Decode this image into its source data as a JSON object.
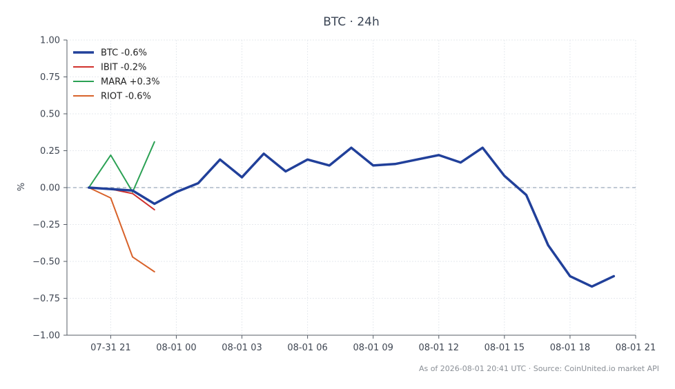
{
  "chart_data": {
    "type": "line",
    "title": "BTC · 24h",
    "xlabel": "",
    "ylabel": "%",
    "ylim": [
      -1.0,
      1.0
    ],
    "xlim": [
      -1.0,
      25.0
    ],
    "x_ticks": [
      {
        "x": 1,
        "label": "07-31 21"
      },
      {
        "x": 4,
        "label": "08-01 00"
      },
      {
        "x": 7,
        "label": "08-01 03"
      },
      {
        "x": 10,
        "label": "08-01 06"
      },
      {
        "x": 13,
        "label": "08-01 09"
      },
      {
        "x": 16,
        "label": "08-01 12"
      },
      {
        "x": 19,
        "label": "08-01 15"
      },
      {
        "x": 22,
        "label": "08-01 18"
      },
      {
        "x": 25,
        "label": "08-01 21"
      }
    ],
    "y_ticks": [
      {
        "y": 1.0,
        "label": "1.00"
      },
      {
        "y": 0.75,
        "label": "0.75"
      },
      {
        "y": 0.5,
        "label": "0.50"
      },
      {
        "y": 0.25,
        "label": "0.25"
      },
      {
        "y": 0.0,
        "label": "0.00"
      },
      {
        "y": -0.25,
        "label": "−0.25"
      },
      {
        "y": -0.5,
        "label": "−0.50"
      },
      {
        "y": -0.75,
        "label": "−0.75"
      },
      {
        "y": -1.0,
        "label": "−1.00"
      }
    ],
    "grid": true,
    "zero_line": true,
    "legend_position": "top-left",
    "series": [
      {
        "name": "BTC -0.6%",
        "color": "#21409a",
        "width": 3.5,
        "x": [
          0,
          1,
          2,
          3,
          4,
          5,
          6,
          7,
          8,
          9,
          10,
          11,
          12,
          13,
          14,
          15,
          16,
          17,
          18,
          19,
          20,
          21,
          22,
          23,
          24
        ],
        "values": [
          0.0,
          -0.01,
          -0.02,
          -0.11,
          -0.03,
          0.03,
          0.19,
          0.07,
          0.23,
          0.11,
          0.19,
          0.15,
          0.27,
          0.15,
          0.16,
          0.19,
          0.22,
          0.17,
          0.27,
          0.08,
          -0.05,
          -0.39,
          -0.6,
          -0.67,
          -0.6
        ]
      },
      {
        "name": "IBIT -0.2%",
        "color": "#d0302c",
        "width": 2,
        "x": [
          0,
          1,
          2,
          3
        ],
        "values": [
          0.0,
          -0.01,
          -0.04,
          -0.15
        ]
      },
      {
        "name": "MARA +0.3%",
        "color": "#2ba154",
        "width": 2,
        "x": [
          0,
          1,
          2,
          3
        ],
        "values": [
          0.0,
          0.22,
          -0.03,
          0.31
        ]
      },
      {
        "name": "RIOT -0.6%",
        "color": "#d8622a",
        "width": 2,
        "x": [
          0,
          1,
          2,
          3
        ],
        "values": [
          0.0,
          -0.07,
          -0.47,
          -0.57
        ]
      }
    ]
  },
  "footer": "As of 2026-08-01 20:41 UTC · Source: CoinUnited.io market API"
}
